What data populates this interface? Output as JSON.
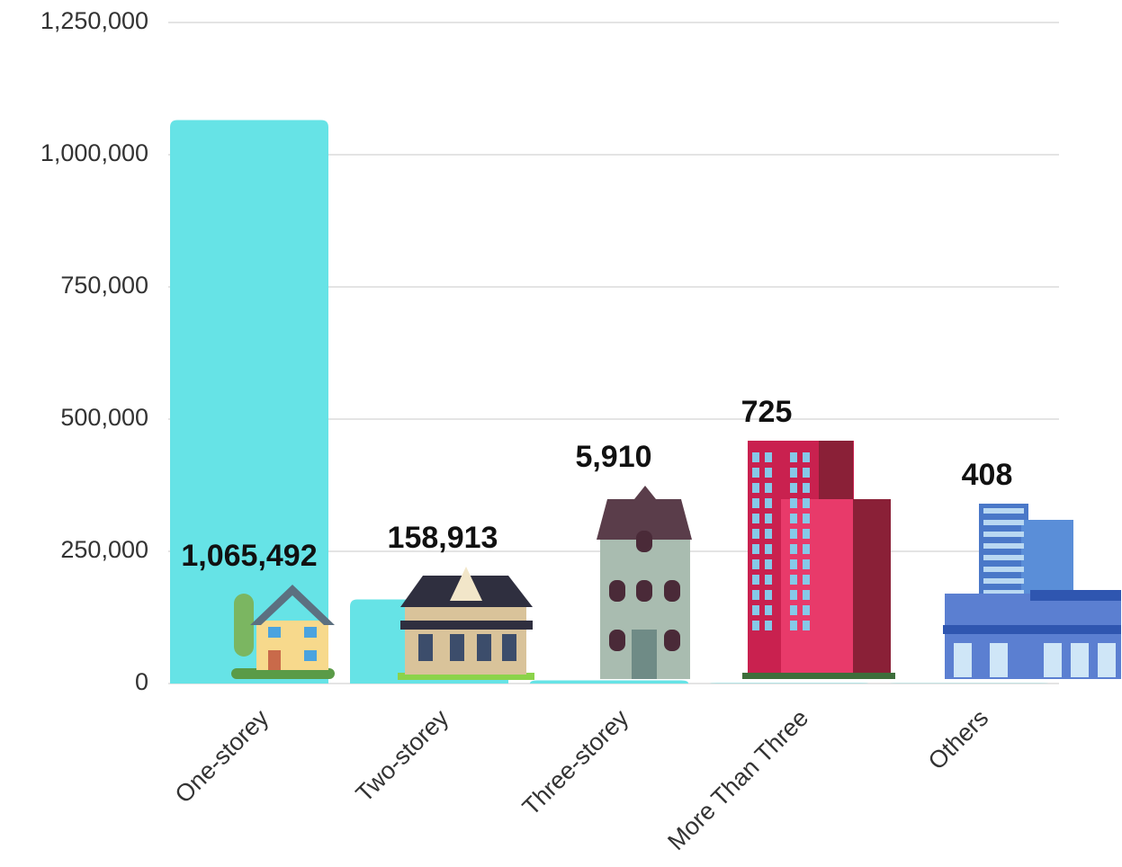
{
  "chart_data": {
    "type": "bar",
    "categories": [
      "One-storey",
      "Two-storey",
      "Three-storey",
      "More Than Three",
      "Others"
    ],
    "values": [
      1065492,
      158913,
      5910,
      725,
      408
    ],
    "value_labels": [
      "1,065,492",
      "158,913",
      "5,910",
      "725",
      "408"
    ],
    "color": "#66e3e6",
    "ylim": [
      0,
      1250000
    ],
    "yticks": [
      0,
      {
        "value": 250000,
        "label": "250,000"
      },
      {
        "value": 500000,
        "label": "500,000"
      },
      {
        "value": 750000,
        "label": "750,000"
      },
      {
        "value": 1000000,
        "label": "1,000,000"
      },
      {
        "value": 1250000,
        "label": "1,250,000"
      }
    ],
    "grid": true
  }
}
